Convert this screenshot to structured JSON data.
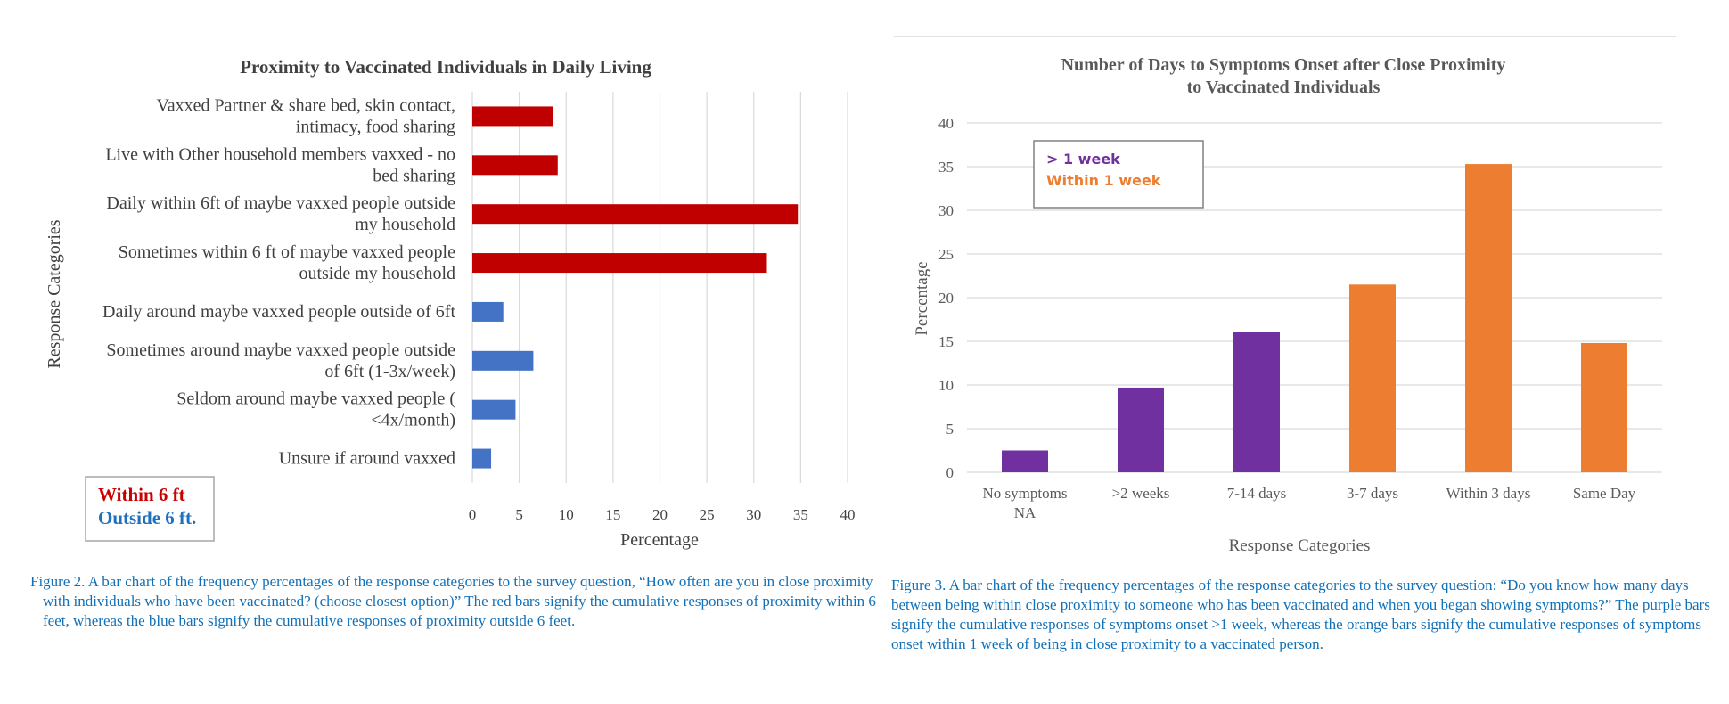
{
  "chart_data": [
    {
      "type": "bar",
      "orientation": "horizontal",
      "title": "Proximity to Vaccinated Individuals in Daily Living",
      "xlabel": "Percentage",
      "ylabel": "Response Categories",
      "xlim": [
        0,
        40
      ],
      "xticks": [
        "0",
        "5",
        "10",
        "15",
        "20",
        "25",
        "30",
        "35",
        "40"
      ],
      "grid": true,
      "categories": [
        [
          "Vaxxed Partner & share bed, skin contact,",
          "intimacy, food sharing"
        ],
        [
          "Live with Other household members vaxxed - no",
          "bed sharing"
        ],
        [
          "Daily within 6ft of maybe vaxxed people outside",
          "my household"
        ],
        [
          "Sometimes within 6 ft of maybe vaxxed people",
          "outside my household"
        ],
        [
          "Daily around maybe vaxxed people outside of 6ft"
        ],
        [
          "Sometimes around maybe vaxxed people outside",
          "of 6ft (1-3x/week)"
        ],
        [
          "Seldom around maybe vaxxed people (",
          "<4x/month)"
        ],
        [
          "Unsure if around vaxxed"
        ]
      ],
      "values": [
        8.6,
        9.1,
        34.7,
        31.4,
        3.3,
        6.5,
        4.6,
        2.0
      ],
      "groups": [
        "within",
        "within",
        "within",
        "within",
        "outside",
        "outside",
        "outside",
        "outside"
      ],
      "legend": [
        {
          "label": "Within 6 ft",
          "group": "within",
          "color": "#cc0000"
        },
        {
          "label": "Outside 6 ft.",
          "group": "outside",
          "color": "#1f6fbf"
        }
      ],
      "legend_position": "bottom-left",
      "colors": {
        "within": "#c00000",
        "outside": "#4472c4"
      }
    },
    {
      "type": "bar",
      "orientation": "vertical",
      "title": [
        "Number of Days to Symptoms Onset after Close Proximity",
        "to Vaccinated Individuals"
      ],
      "xlabel": "Response Categories",
      "ylabel": "Percentage",
      "ylim": [
        0,
        40
      ],
      "yticks": [
        "0",
        "5",
        "10",
        "15",
        "20",
        "25",
        "30",
        "35",
        "40"
      ],
      "grid": true,
      "categories": [
        [
          "No symptoms",
          "NA"
        ],
        [
          ">2 weeks"
        ],
        [
          "7-14 days"
        ],
        [
          "3-7 days"
        ],
        [
          "Within 3 days"
        ],
        [
          "Same Day"
        ]
      ],
      "values": [
        2.5,
        9.7,
        16.1,
        21.5,
        35.3,
        14.8
      ],
      "groups": [
        "over",
        "over",
        "over",
        "within",
        "within",
        "within"
      ],
      "legend": [
        {
          "label": "> 1 week",
          "group": "over",
          "color": "#7030a0"
        },
        {
          "label": "Within 1 week",
          "group": "within",
          "color": "#ed7d31"
        }
      ],
      "legend_position": "top-left",
      "colors": {
        "over": "#7030a0",
        "within": "#ed7d31"
      }
    }
  ],
  "captions": {
    "fig2": "Figure 2. A bar chart of the frequency percentages of the response categories to the survey question, “How often are you in close proximity with individuals who have been vaccinated? (choose closest option)” The red bars signify the cumulative responses of proximity within 6 feet, whereas the blue bars signify the cumulative responses of proximity outside 6 feet.",
    "fig3": "Figure 3. A bar chart of the frequency percentages of the response categories to the survey question: “Do you know how many days between being within close proximity to someone who has been vaccinated and when you began showing symptoms?” The purple bars signify the cumulative responses of symptoms onset >1 week, whereas the orange bars signify the cumulative responses of symptoms onset within 1 week of being in close proximity to a vaccinated person."
  },
  "colors": {
    "caption": "#1070b8",
    "grid": "#d9d9d9",
    "axis_text": "#595959"
  }
}
